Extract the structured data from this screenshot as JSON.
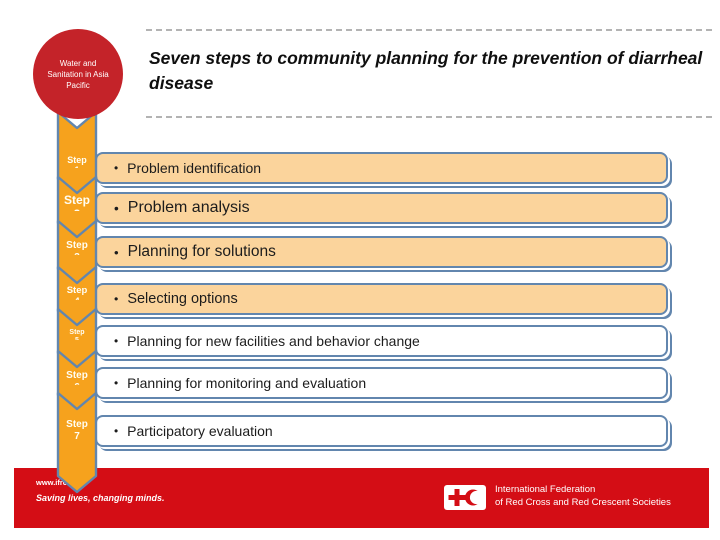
{
  "slide": {
    "badge_text": "Water and\nSanitation in Asia\nPacific",
    "title": "Seven steps to community planning for the prevention of diarrheal disease",
    "bullet_char": "•",
    "steps": [
      {
        "label": "Step",
        "number": "1",
        "text": "Problem identification",
        "highlighted": true
      },
      {
        "label": "Step",
        "number": "2",
        "text": "Problem analysis",
        "highlighted": true
      },
      {
        "label": "Step",
        "number": "3",
        "text": "Planning for solutions",
        "highlighted": true
      },
      {
        "label": "Step",
        "number": "4",
        "text": "Selecting options",
        "highlighted": true
      },
      {
        "label": "Step",
        "number": "5",
        "text": "Planning for new facilities and behavior change",
        "highlighted": false
      },
      {
        "label": "Step",
        "number": "6",
        "text": "Planning for monitoring and evaluation",
        "highlighted": false
      },
      {
        "label": "Step",
        "number": "7",
        "text": "Participatory evaluation",
        "highlighted": false
      }
    ],
    "footer": {
      "url": "www.ifrc.org",
      "slogan": "Saving lives, changing minds.",
      "logo_line1": "International Federation",
      "logo_line2": "of Red Cross and Red Crescent Societies"
    },
    "colors": {
      "badge_red": "#C42329",
      "footer_red": "#D40D15",
      "chevron_orange": "#F6A21D",
      "box_highlight": "#FBD49C",
      "box_plain": "#FFFFFF",
      "outline_blue": "#6286AE"
    }
  }
}
